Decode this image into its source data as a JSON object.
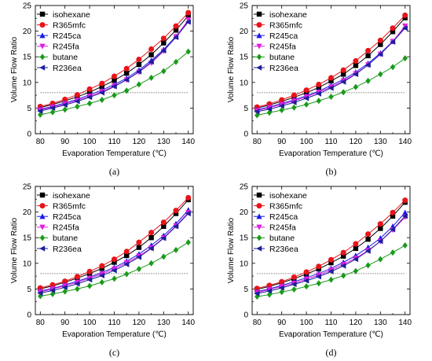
{
  "series_styles": [
    {
      "name": "isohexane",
      "color": "#000000",
      "marker": "square"
    },
    {
      "name": "R365mfc",
      "color": "#e8141a",
      "marker": "circle"
    },
    {
      "name": "R245ca",
      "color": "#1a1ae8",
      "marker": "triangle-up"
    },
    {
      "name": "R245fa",
      "color": "#e01ee0",
      "marker": "triangle-down"
    },
    {
      "name": "butane",
      "color": "#1a9a1a",
      "marker": "diamond"
    },
    {
      "name": "R236ea",
      "color": "#1e1e9c",
      "marker": "triangle-left"
    }
  ],
  "chart_data": [
    {
      "type": "line",
      "panel_label": "(a)",
      "xlabel": "Evaporation Temperature (℃)",
      "ylabel": "Volume Flow Ratio",
      "xlim": [
        78,
        142
      ],
      "ylim": [
        0,
        25
      ],
      "xticks": [
        80,
        90,
        100,
        110,
        120,
        130,
        140
      ],
      "yticks": [
        0,
        5,
        10,
        15,
        20,
        25
      ],
      "reference_line": 8,
      "legend_position": "top-left",
      "x": [
        80,
        85,
        90,
        95,
        100,
        105,
        110,
        115,
        120,
        125,
        130,
        135,
        140
      ],
      "series": [
        {
          "name": "isohexane",
          "values": [
            5.1,
            5.7,
            6.4,
            7.2,
            8.1,
            9.2,
            10.4,
            11.8,
            13.5,
            15.4,
            17.7,
            20.2,
            23.0
          ]
        },
        {
          "name": "R365mfc",
          "values": [
            5.3,
            5.9,
            6.7,
            7.6,
            8.7,
            9.8,
            11.2,
            12.7,
            14.5,
            16.5,
            18.6,
            21.0,
            23.6
          ]
        },
        {
          "name": "R245ca",
          "values": [
            4.8,
            5.3,
            6.0,
            6.7,
            7.6,
            8.5,
            9.6,
            10.8,
            12.4,
            14.3,
            16.4,
            19.0,
            22.0
          ]
        },
        {
          "name": "R245fa",
          "values": [
            4.6,
            5.2,
            5.8,
            6.5,
            7.3,
            8.2,
            9.3,
            10.5,
            12.0,
            13.8,
            16.1,
            18.9,
            22.2
          ]
        },
        {
          "name": "butane",
          "values": [
            3.7,
            4.2,
            4.7,
            5.3,
            5.9,
            6.6,
            7.5,
            8.4,
            9.6,
            10.9,
            12.2,
            14.0,
            16.0
          ]
        },
        {
          "name": "R236ea",
          "values": [
            4.4,
            5.0,
            5.6,
            6.3,
            7.1,
            8.0,
            9.2,
            10.5,
            12.1,
            14.0,
            16.2,
            18.8,
            21.8
          ]
        }
      ]
    },
    {
      "type": "line",
      "panel_label": "(b)",
      "xlabel": "Evaporation Temperature (℃)",
      "ylabel": "Volume Flow Ratio",
      "xlim": [
        78,
        142
      ],
      "ylim": [
        0,
        25
      ],
      "xticks": [
        80,
        90,
        100,
        110,
        120,
        130,
        140
      ],
      "yticks": [
        0,
        5,
        10,
        15,
        20,
        25
      ],
      "reference_line": 8,
      "legend_position": "top-left",
      "x": [
        80,
        85,
        90,
        95,
        100,
        105,
        110,
        115,
        120,
        125,
        130,
        135,
        140
      ],
      "series": [
        {
          "name": "isohexane",
          "values": [
            5.0,
            5.6,
            6.3,
            7.1,
            8.0,
            9.0,
            10.3,
            11.6,
            13.3,
            15.2,
            17.4,
            19.9,
            22.6
          ]
        },
        {
          "name": "R365mfc",
          "values": [
            5.2,
            5.8,
            6.6,
            7.5,
            8.5,
            9.6,
            10.9,
            12.4,
            14.2,
            16.2,
            18.2,
            20.6,
            23.1
          ]
        },
        {
          "name": "R245ca",
          "values": [
            4.7,
            5.2,
            5.9,
            6.6,
            7.4,
            8.3,
            9.4,
            10.6,
            12.0,
            13.7,
            15.7,
            18.0,
            20.8
          ]
        },
        {
          "name": "R245fa",
          "values": [
            4.5,
            5.1,
            5.7,
            6.4,
            7.2,
            8.1,
            9.1,
            10.3,
            11.7,
            13.4,
            15.5,
            18.0,
            21.0
          ]
        },
        {
          "name": "butane",
          "values": [
            3.6,
            4.1,
            4.6,
            5.1,
            5.7,
            6.4,
            7.2,
            8.1,
            9.1,
            10.3,
            11.6,
            13.0,
            14.7
          ]
        },
        {
          "name": "R236ea",
          "values": [
            4.3,
            4.8,
            5.4,
            6.1,
            6.9,
            7.8,
            8.9,
            10.1,
            11.6,
            13.4,
            15.5,
            17.9,
            20.6
          ]
        }
      ]
    },
    {
      "type": "line",
      "panel_label": "(c)",
      "xlabel": "Evaporation Temperature (℃)",
      "ylabel": "Volume Flow Ratio",
      "xlim": [
        78,
        142
      ],
      "ylim": [
        0,
        25
      ],
      "xticks": [
        80,
        90,
        100,
        110,
        120,
        130,
        140
      ],
      "yticks": [
        0,
        5,
        10,
        15,
        20,
        25
      ],
      "reference_line": 8,
      "legend_position": "top-left",
      "x": [
        80,
        85,
        90,
        95,
        100,
        105,
        110,
        115,
        120,
        125,
        130,
        135,
        140
      ],
      "series": [
        {
          "name": "isohexane",
          "values": [
            5.0,
            5.6,
            6.3,
            7.1,
            8.0,
            9.0,
            10.2,
            11.5,
            13.1,
            15.0,
            17.2,
            19.7,
            22.4
          ]
        },
        {
          "name": "R365mfc",
          "values": [
            5.2,
            5.8,
            6.5,
            7.4,
            8.4,
            9.5,
            10.8,
            12.3,
            14.1,
            16.0,
            18.0,
            20.3,
            22.8
          ]
        },
        {
          "name": "R245ca",
          "values": [
            4.6,
            5.1,
            5.8,
            6.5,
            7.3,
            8.2,
            9.2,
            10.4,
            11.8,
            13.5,
            15.4,
            17.7,
            20.4
          ]
        },
        {
          "name": "R245fa",
          "values": [
            4.4,
            5.0,
            5.6,
            6.3,
            7.1,
            7.9,
            8.9,
            10.1,
            11.4,
            13.0,
            15.0,
            17.3,
            19.9
          ]
        },
        {
          "name": "butane",
          "values": [
            3.6,
            4.0,
            4.5,
            5.0,
            5.6,
            6.3,
            7.0,
            7.9,
            8.9,
            10.0,
            11.3,
            12.6,
            14.1
          ]
        },
        {
          "name": "R236ea",
          "values": [
            4.2,
            4.7,
            5.3,
            6.0,
            6.8,
            7.6,
            8.6,
            9.8,
            11.2,
            12.9,
            14.9,
            17.2,
            19.7
          ]
        }
      ]
    },
    {
      "type": "line",
      "panel_label": "(d)",
      "xlabel": "Evaporation Temperature (℃)",
      "ylabel": "Volume Flow Ratio",
      "xlim": [
        78,
        142
      ],
      "ylim": [
        0,
        25
      ],
      "xticks": [
        80,
        90,
        100,
        110,
        120,
        130,
        140
      ],
      "yticks": [
        0,
        5,
        10,
        15,
        20,
        25
      ],
      "reference_line": 8,
      "legend_position": "top-left",
      "x": [
        80,
        85,
        90,
        95,
        100,
        105,
        110,
        115,
        120,
        125,
        130,
        135,
        140
      ],
      "series": [
        {
          "name": "isohexane",
          "values": [
            4.9,
            5.5,
            6.2,
            7.0,
            7.9,
            8.9,
            10.1,
            11.4,
            12.9,
            14.7,
            16.8,
            19.2,
            21.9
          ]
        },
        {
          "name": "R365mfc",
          "values": [
            5.1,
            5.7,
            6.4,
            7.3,
            8.3,
            9.4,
            10.7,
            12.1,
            13.8,
            15.7,
            17.7,
            19.9,
            22.3
          ]
        },
        {
          "name": "R245ca",
          "values": [
            4.5,
            5.0,
            5.7,
            6.4,
            7.2,
            8.0,
            9.0,
            10.2,
            11.5,
            13.1,
            14.9,
            17.2,
            19.9
          ]
        },
        {
          "name": "R245fa",
          "values": [
            4.3,
            4.9,
            5.5,
            6.1,
            6.9,
            7.7,
            8.7,
            9.8,
            11.0,
            12.5,
            14.3,
            16.5,
            19.0
          ]
        },
        {
          "name": "butane",
          "values": [
            3.5,
            3.9,
            4.4,
            4.9,
            5.5,
            6.1,
            6.8,
            7.6,
            8.5,
            9.6,
            10.8,
            12.1,
            13.5
          ]
        },
        {
          "name": "R236ea",
          "values": [
            4.1,
            4.6,
            5.2,
            5.9,
            6.6,
            7.4,
            8.4,
            9.5,
            10.8,
            12.4,
            14.3,
            16.6,
            19.2
          ]
        }
      ]
    }
  ]
}
